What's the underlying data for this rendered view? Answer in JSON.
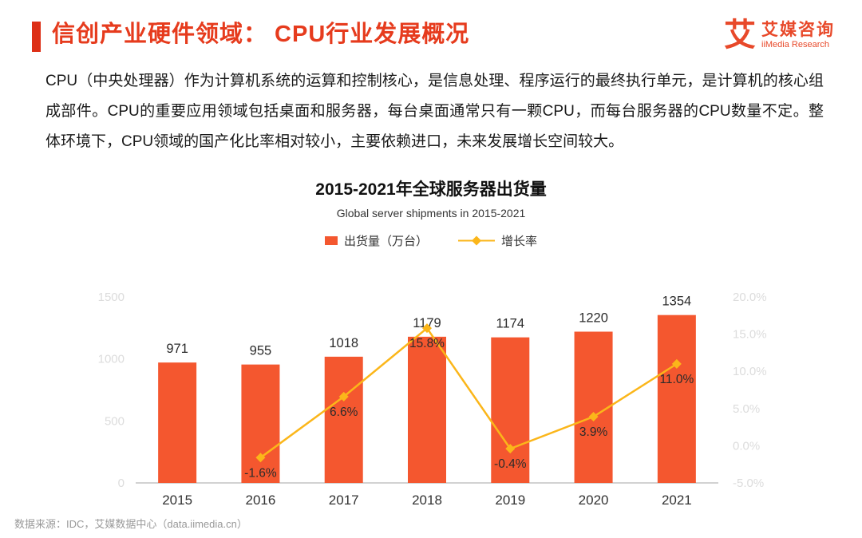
{
  "header": {
    "title": "信创产业硬件领域： CPU行业发展概况",
    "logo_mark": "艾",
    "logo_cn": "艾媒咨询",
    "logo_en": "iiMedia Research",
    "accent_color": "#dd2f16",
    "title_color": "#e63b1d"
  },
  "body": {
    "paragraph": "CPU（中央处理器）作为计算机系统的运算和控制核心，是信息处理、程序运行的最终执行单元，是计算机的核心组成部件。CPU的重要应用领域包括桌面和服务器，每台桌面通常只有一颗CPU，而每台服务器的CPU数量不定。整体环境下，CPU领域的国产化比率相对较小，主要依赖进口，未来发展增长空间较大。"
  },
  "chart_data": {
    "type": "bar",
    "combo": "bar+line",
    "title": "2015-2021年全球服务器出货量",
    "subtitle": "Global server shipments in 2015-2021",
    "categories": [
      "2015",
      "2016",
      "2017",
      "2018",
      "2019",
      "2020",
      "2021"
    ],
    "series": [
      {
        "name": "出货量（万台）",
        "type": "bar",
        "axis": "left",
        "color": "#f4572f",
        "values": [
          971,
          955,
          1018,
          1179,
          1174,
          1220,
          1354
        ],
        "value_labels": [
          "971",
          "955",
          "1018",
          "1179",
          "1174",
          "1220",
          "1354"
        ]
      },
      {
        "name": "增长率",
        "type": "line",
        "axis": "right",
        "color": "#fbb61a",
        "values": [
          null,
          -1.6,
          6.6,
          15.8,
          -0.4,
          3.9,
          11.0
        ],
        "value_labels": [
          "",
          "-1.6%",
          "6.6%",
          "15.8%",
          "-0.4%",
          "3.9%",
          "11.0%"
        ]
      }
    ],
    "left_axis": {
      "range": [
        0,
        1500
      ],
      "ticks": [
        0,
        500,
        1000,
        1500
      ],
      "labels": [
        "0",
        "500",
        "1000",
        "1500"
      ]
    },
    "right_axis": {
      "range": [
        -5,
        20
      ],
      "ticks": [
        -5,
        0,
        5,
        10,
        15,
        20
      ],
      "labels": [
        "-5.0%",
        "0.0%",
        "5.0%",
        "10.0%",
        "15.0%",
        "20.0%"
      ]
    },
    "grid": false,
    "legend_position": "top",
    "axis_label_color": "#dcdcdc",
    "category_label_color": "#333333"
  },
  "footer": {
    "source": "数据来源：IDC，艾媒数据中心（data.iimedia.cn）"
  }
}
